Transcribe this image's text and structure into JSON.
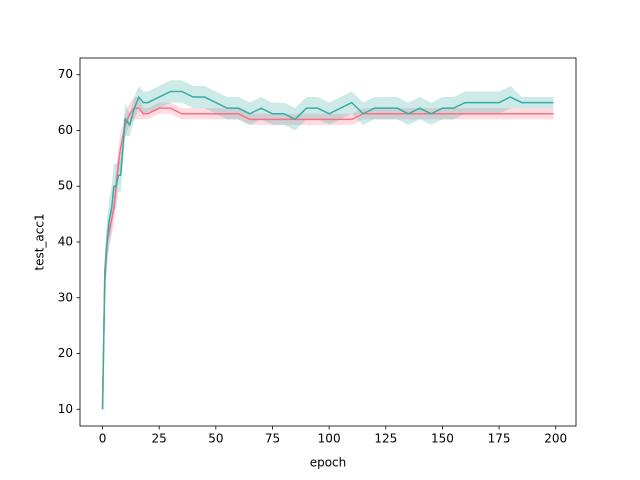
{
  "chart_data": {
    "type": "line",
    "x_label": "epoch",
    "y_label": "test_acc1",
    "x": [
      0,
      1,
      2,
      3,
      4,
      5,
      6,
      7,
      8,
      9,
      10,
      12,
      14,
      16,
      18,
      20,
      25,
      30,
      35,
      40,
      45,
      50,
      55,
      60,
      65,
      70,
      75,
      80,
      85,
      90,
      95,
      100,
      105,
      110,
      115,
      120,
      125,
      130,
      135,
      140,
      145,
      150,
      155,
      160,
      165,
      170,
      175,
      180,
      185,
      190,
      195,
      199
    ],
    "series": [
      {
        "color": "#f77189",
        "values": [
          10,
          35,
          40,
          42,
          44,
          46,
          50,
          54,
          57,
          59,
          61,
          63,
          64,
          64,
          63,
          63,
          64,
          64,
          63,
          63,
          63,
          63,
          63,
          63,
          62,
          62,
          62,
          62,
          62,
          62,
          62,
          62,
          62,
          62,
          63,
          63,
          63,
          63,
          63,
          63,
          63,
          63,
          63,
          63,
          63,
          63,
          63,
          63,
          63,
          63,
          63,
          63
        ],
        "lower": [
          10,
          32,
          37,
          39,
          41,
          43,
          47,
          51,
          54,
          57,
          59,
          61,
          62,
          62,
          62,
          62,
          63,
          63,
          62,
          62,
          62,
          62,
          62,
          62,
          61,
          61,
          61,
          61,
          61,
          61,
          61,
          61,
          61,
          61,
          62,
          62,
          62,
          62,
          62,
          62,
          62,
          62,
          62,
          62,
          62,
          62,
          62,
          62,
          62,
          62,
          62,
          62
        ],
        "upper": [
          10,
          38,
          43,
          45,
          47,
          49,
          53,
          57,
          60,
          61,
          63,
          65,
          66,
          66,
          64,
          64,
          65,
          65,
          64,
          64,
          64,
          64,
          64,
          64,
          63,
          63,
          63,
          63,
          63,
          63,
          63,
          63,
          63,
          63,
          64,
          64,
          64,
          64,
          64,
          64,
          64,
          64,
          64,
          64,
          64,
          64,
          64,
          64,
          64,
          64,
          64,
          64
        ]
      },
      {
        "color": "#36ada4",
        "values": [
          10,
          33,
          40,
          44,
          46,
          50,
          50,
          52,
          52,
          57,
          62,
          61,
          64,
          66,
          65,
          65,
          66,
          67,
          67,
          66,
          66,
          65,
          64,
          64,
          63,
          64,
          63,
          63,
          62,
          64,
          64,
          63,
          64,
          65,
          63,
          64,
          64,
          64,
          63,
          64,
          63,
          64,
          64,
          65,
          65,
          65,
          65,
          66,
          65,
          65,
          65,
          65
        ],
        "lower": [
          10,
          28,
          36,
          40,
          42,
          46,
          46,
          49,
          49,
          54,
          59,
          59,
          62,
          64,
          63,
          63,
          64,
          65,
          65,
          64,
          64,
          63,
          62,
          62,
          61,
          62,
          61,
          61,
          60,
          62,
          62,
          61,
          62,
          63,
          61,
          62,
          62,
          62,
          61,
          62,
          61,
          62,
          62,
          63,
          63,
          63,
          63,
          64,
          64,
          64,
          64,
          64
        ],
        "upper": [
          10,
          38,
          44,
          48,
          50,
          54,
          54,
          55,
          55,
          60,
          65,
          63,
          66,
          68,
          67,
          67,
          68,
          69,
          69,
          68,
          68,
          67,
          66,
          66,
          65,
          66,
          65,
          65,
          64,
          66,
          66,
          65,
          66,
          67,
          65,
          66,
          66,
          66,
          65,
          66,
          65,
          66,
          66,
          67,
          67,
          67,
          67,
          68,
          66,
          66,
          66,
          66
        ]
      }
    ],
    "xlim": [
      -9.95,
      208.95
    ],
    "ylim": [
      7.0,
      73.0
    ],
    "xticks": [
      0,
      25,
      50,
      75,
      100,
      125,
      150,
      175,
      200
    ],
    "yticks": [
      10,
      20,
      30,
      40,
      50,
      60,
      70
    ]
  }
}
